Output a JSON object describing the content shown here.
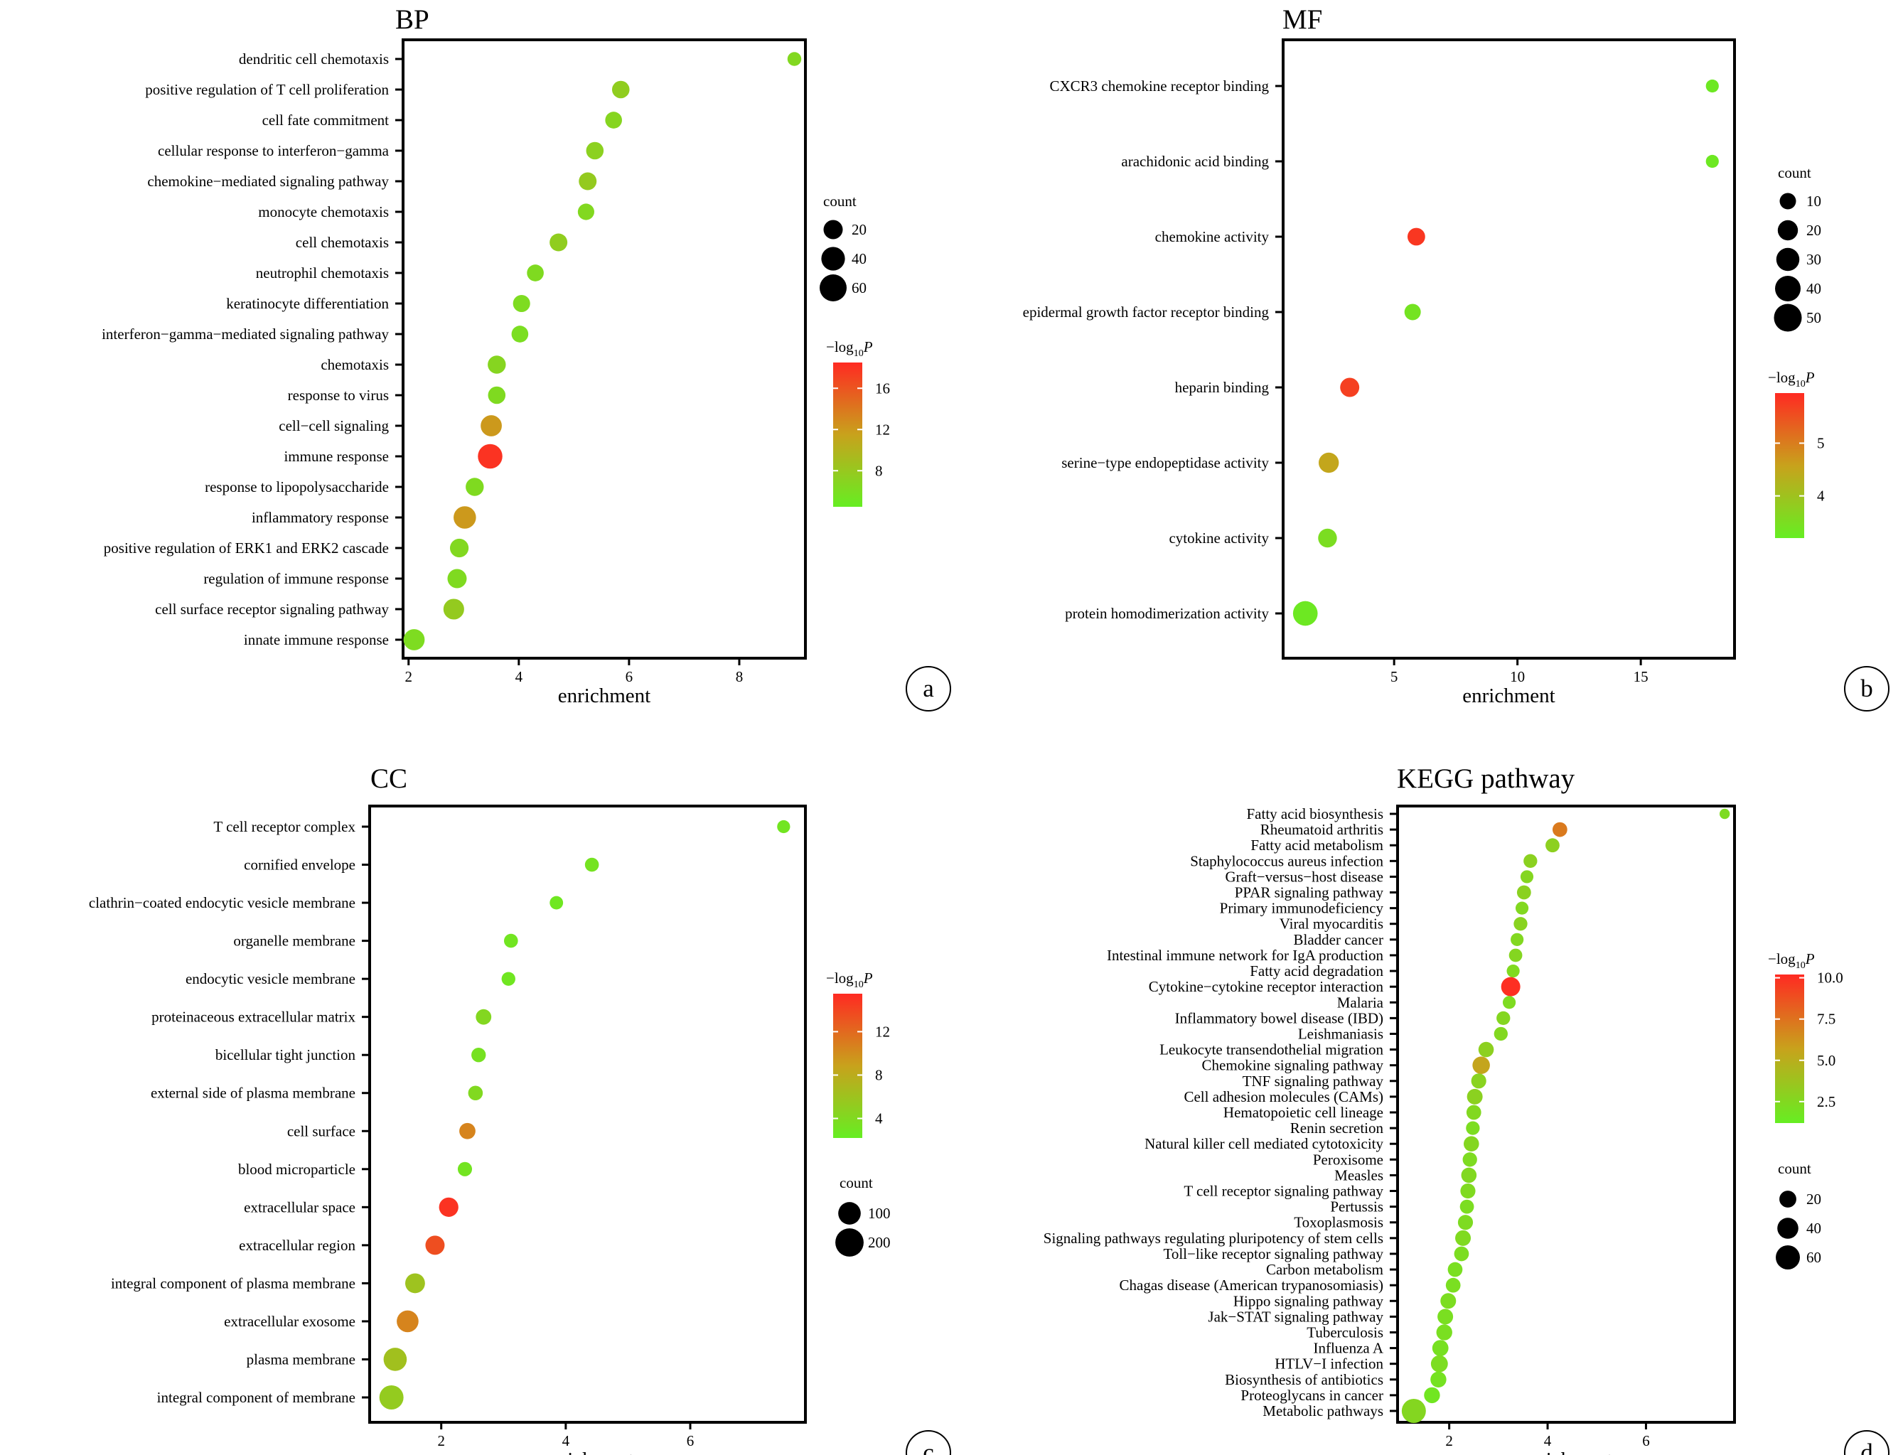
{
  "chart_data": [
    {
      "id": "a",
      "panel_letter": "a",
      "type": "scatter",
      "title": "BP",
      "xlabel": "enrichment",
      "xlim": [
        1.9,
        9.2
      ],
      "xticks": [
        2,
        4,
        6,
        8
      ],
      "size_legend": {
        "title": "count",
        "values": [
          20,
          40,
          60
        ]
      },
      "color_legend": {
        "title_prefix": "−log",
        "title_sub": "10",
        "title_var": "P",
        "ticks": [
          8,
          12,
          16
        ],
        "range": [
          4.5,
          18.5
        ]
      },
      "colors": {
        "low": "#66ee22",
        "mid": "#c8a21c",
        "high": "#ff2a22"
      },
      "points": [
        {
          "label": "dendritic cell chemotaxis",
          "x": 9.0,
          "count": 5,
          "logp": 6.5
        },
        {
          "label": "positive regulation of T cell proliferation",
          "x": 5.85,
          "count": 14,
          "logp": 7.5
        },
        {
          "label": "cell fate commitment",
          "x": 5.72,
          "count": 12,
          "logp": 6.8
        },
        {
          "label": "cellular response to interferon−gamma",
          "x": 5.38,
          "count": 14,
          "logp": 7.2
        },
        {
          "label": "chemokine−mediated signaling pathway",
          "x": 5.25,
          "count": 15,
          "logp": 7.8
        },
        {
          "label": "monocyte chemotaxis",
          "x": 5.22,
          "count": 11,
          "logp": 6.5
        },
        {
          "label": "cell chemotaxis",
          "x": 4.72,
          "count": 15,
          "logp": 7.5
        },
        {
          "label": "neutrophil chemotaxis",
          "x": 4.3,
          "count": 12,
          "logp": 6.3
        },
        {
          "label": "keratinocyte differentiation",
          "x": 4.05,
          "count": 13,
          "logp": 6.2
        },
        {
          "label": "interferon−gamma−mediated signaling pathway",
          "x": 4.02,
          "count": 12,
          "logp": 6.0
        },
        {
          "label": "chemotaxis",
          "x": 3.6,
          "count": 16,
          "logp": 6.8
        },
        {
          "label": "response to virus",
          "x": 3.6,
          "count": 14,
          "logp": 6.3
        },
        {
          "label": "cell−cell signaling",
          "x": 3.5,
          "count": 28,
          "logp": 12.0
        },
        {
          "label": "immune response",
          "x": 3.48,
          "count": 45,
          "logp": 18.0
        },
        {
          "label": "response to lipopolysaccharide",
          "x": 3.2,
          "count": 16,
          "logp": 6.3
        },
        {
          "label": "inflammatory response",
          "x": 3.02,
          "count": 34,
          "logp": 12.0
        },
        {
          "label": "positive regulation of ERK1 and ERK2 cascade",
          "x": 2.92,
          "count": 18,
          "logp": 6.5
        },
        {
          "label": "regulation of immune response",
          "x": 2.88,
          "count": 20,
          "logp": 6.3
        },
        {
          "label": "cell surface receptor signaling pathway",
          "x": 2.82,
          "count": 26,
          "logp": 7.8
        },
        {
          "label": "innate immune response",
          "x": 2.1,
          "count": 28,
          "logp": 6.2
        }
      ]
    },
    {
      "id": "b",
      "panel_letter": "b",
      "type": "scatter",
      "title": "MF",
      "xlabel": "enrichment",
      "xlim": [
        0.5,
        18.8
      ],
      "xticks": [
        5,
        10,
        15
      ],
      "size_legend": {
        "title": "count",
        "values": [
          10,
          20,
          30,
          40,
          50
        ]
      },
      "color_legend": {
        "title_prefix": "−log",
        "title_sub": "10",
        "title_var": "P",
        "ticks": [
          4,
          5
        ],
        "range": [
          3.2,
          5.95
        ]
      },
      "colors": {
        "low": "#66ee22",
        "mid": "#c8a21c",
        "high": "#ff2a22"
      },
      "points": [
        {
          "label": "CXCR3 chemokine receptor binding",
          "x": 17.9,
          "count": 4,
          "logp": 3.3
        },
        {
          "label": "arachidonic acid binding",
          "x": 17.9,
          "count": 4,
          "logp": 3.3
        },
        {
          "label": "chemokine activity",
          "x": 5.9,
          "count": 13,
          "logp": 5.8
        },
        {
          "label": "epidermal growth factor receptor binding",
          "x": 5.75,
          "count": 10,
          "logp": 3.4
        },
        {
          "label": "heparin binding",
          "x": 3.2,
          "count": 17,
          "logp": 5.7
        },
        {
          "label": "serine−type endopeptidase activity",
          "x": 2.35,
          "count": 20,
          "logp": 4.5
        },
        {
          "label": "cytokine activity",
          "x": 2.3,
          "count": 16,
          "logp": 3.5
        },
        {
          "label": "protein homodimerization activity",
          "x": 1.4,
          "count": 36,
          "logp": 3.3
        }
      ]
    },
    {
      "id": "c",
      "panel_letter": "c",
      "type": "scatter",
      "title": "CC",
      "xlabel": "enrichment",
      "xlim": [
        0.85,
        7.85
      ],
      "xticks": [
        2,
        4,
        6
      ],
      "size_legend": {
        "title": "count",
        "values": [
          100,
          200
        ]
      },
      "color_legend": {
        "title_prefix": "−log",
        "title_sub": "10",
        "title_var": "P",
        "ticks": [
          4,
          8,
          12
        ],
        "range": [
          2.2,
          15.5
        ]
      },
      "colors": {
        "low": "#66ee22",
        "mid": "#c8a21c",
        "high": "#ff2a22"
      },
      "points": [
        {
          "label": "T cell receptor complex",
          "x": 7.5,
          "count": 10,
          "logp": 3.0
        },
        {
          "label": "cornified envelope",
          "x": 4.42,
          "count": 15,
          "logp": 3.2
        },
        {
          "label": "clathrin−coated endocytic vesicle membrane",
          "x": 3.85,
          "count": 12,
          "logp": 2.8
        },
        {
          "label": "organelle membrane",
          "x": 3.12,
          "count": 15,
          "logp": 3.0
        },
        {
          "label": "endocytic vesicle membrane",
          "x": 3.08,
          "count": 14,
          "logp": 2.9
        },
        {
          "label": "proteinaceous extracellular matrix",
          "x": 2.68,
          "count": 25,
          "logp": 4.2
        },
        {
          "label": "bicellular tight junction",
          "x": 2.6,
          "count": 18,
          "logp": 3.3
        },
        {
          "label": "external side of plasma membrane",
          "x": 2.55,
          "count": 19,
          "logp": 4.0
        },
        {
          "label": "cell surface",
          "x": 2.42,
          "count": 30,
          "logp": 10.5
        },
        {
          "label": "blood microparticle",
          "x": 2.38,
          "count": 17,
          "logp": 3.1
        },
        {
          "label": "extracellular space",
          "x": 2.12,
          "count": 60,
          "logp": 15.0
        },
        {
          "label": "extracellular region",
          "x": 1.9,
          "count": 58,
          "logp": 13.5
        },
        {
          "label": "integral component of plasma membrane",
          "x": 1.58,
          "count": 65,
          "logp": 6.0
        },
        {
          "label": "extracellular exosome",
          "x": 1.46,
          "count": 90,
          "logp": 10.5
        },
        {
          "label": "plasma membrane",
          "x": 1.26,
          "count": 110,
          "logp": 6.2
        },
        {
          "label": "integral component of membrane",
          "x": 1.2,
          "count": 125,
          "logp": 5.3
        }
      ]
    },
    {
      "id": "d",
      "panel_letter": "d",
      "type": "scatter",
      "title": "KEGG pathway",
      "xlabel": "enrichment",
      "xlim": [
        0.95,
        7.8
      ],
      "xticks": [
        2,
        4,
        6
      ],
      "size_legend": {
        "title": "count",
        "values": [
          20,
          40,
          60
        ]
      },
      "color_legend": {
        "title_prefix": "−log",
        "title_sub": "10",
        "title_var": "P",
        "ticks": [
          2.5,
          5.0,
          7.5,
          10.0
        ],
        "tick_labels": [
          "2.5",
          "5.0",
          "7.5",
          "10.0"
        ],
        "range": [
          1.2,
          10.2
        ]
      },
      "colors": {
        "low": "#66ee22",
        "mid": "#c8a21c",
        "high": "#ff2a22"
      },
      "points": [
        {
          "label": "Fatty acid biosynthesis",
          "x": 7.6,
          "count": 2,
          "logp": 2.3
        },
        {
          "label": "Rheumatoid arthritis",
          "x": 4.25,
          "count": 12,
          "logp": 7.2
        },
        {
          "label": "Fatty acid metabolism",
          "x": 4.1,
          "count": 10,
          "logp": 3.0
        },
        {
          "label": "Staphylococcus aureus infection",
          "x": 3.65,
          "count": 9,
          "logp": 2.9
        },
        {
          "label": "Graft−versus−host disease",
          "x": 3.58,
          "count": 7,
          "logp": 2.6
        },
        {
          "label": "PPAR signaling pathway",
          "x": 3.52,
          "count": 10,
          "logp": 2.9
        },
        {
          "label": "Primary immunodeficiency",
          "x": 3.48,
          "count": 7,
          "logp": 2.5
        },
        {
          "label": "Viral myocarditis",
          "x": 3.45,
          "count": 9,
          "logp": 2.8
        },
        {
          "label": "Bladder cancer",
          "x": 3.38,
          "count": 7,
          "logp": 2.5
        },
        {
          "label": "Intestinal immune network for IgA production",
          "x": 3.35,
          "count": 8,
          "logp": 2.6
        },
        {
          "label": "Fatty acid degradation",
          "x": 3.3,
          "count": 7,
          "logp": 2.4
        },
        {
          "label": "Cytokine−cytokine receptor interaction",
          "x": 3.25,
          "count": 30,
          "logp": 10.0
        },
        {
          "label": "Malaria",
          "x": 3.22,
          "count": 7,
          "logp": 2.3
        },
        {
          "label": "Inflammatory bowel disease (IBD)",
          "x": 3.1,
          "count": 9,
          "logp": 2.6
        },
        {
          "label": "Leishmaniasis",
          "x": 3.05,
          "count": 9,
          "logp": 2.5
        },
        {
          "label": "Leukocyte transendothelial migration",
          "x": 2.75,
          "count": 14,
          "logp": 3.0
        },
        {
          "label": "Chemokine signaling pathway",
          "x": 2.65,
          "count": 22,
          "logp": 5.5
        },
        {
          "label": "TNF signaling pathway",
          "x": 2.6,
          "count": 13,
          "logp": 2.8
        },
        {
          "label": "Cell adhesion molecules (CAMs)",
          "x": 2.52,
          "count": 15,
          "logp": 2.9
        },
        {
          "label": "Hematopoietic cell lineage",
          "x": 2.5,
          "count": 12,
          "logp": 2.5
        },
        {
          "label": "Renin secretion",
          "x": 2.48,
          "count": 9,
          "logp": 2.2
        },
        {
          "label": "Natural killer cell mediated cytotoxicity",
          "x": 2.45,
          "count": 14,
          "logp": 2.6
        },
        {
          "label": "Peroxisome",
          "x": 2.42,
          "count": 11,
          "logp": 2.3
        },
        {
          "label": "Measles",
          "x": 2.4,
          "count": 14,
          "logp": 2.5
        },
        {
          "label": "T cell receptor signaling pathway",
          "x": 2.38,
          "count": 13,
          "logp": 2.4
        },
        {
          "label": "Pertussis",
          "x": 2.36,
          "count": 10,
          "logp": 2.2
        },
        {
          "label": "Toxoplasmosis",
          "x": 2.33,
          "count": 13,
          "logp": 2.3
        },
        {
          "label": "Signaling pathways regulating pluripotency of stem cells",
          "x": 2.28,
          "count": 15,
          "logp": 2.4
        },
        {
          "label": "Toll−like receptor signaling pathway",
          "x": 2.25,
          "count": 12,
          "logp": 2.2
        },
        {
          "label": "Carbon metabolism",
          "x": 2.12,
          "count": 12,
          "logp": 2.1
        },
        {
          "label": "Chagas disease (American trypanosomiasis)",
          "x": 2.08,
          "count": 12,
          "logp": 2.1
        },
        {
          "label": "Hippo signaling pathway",
          "x": 1.98,
          "count": 15,
          "logp": 2.2
        },
        {
          "label": "Jak−STAT signaling pathway",
          "x": 1.92,
          "count": 15,
          "logp": 2.1
        },
        {
          "label": "Tuberculosis",
          "x": 1.9,
          "count": 16,
          "logp": 2.1
        },
        {
          "label": "Influenza A",
          "x": 1.82,
          "count": 17,
          "logp": 2.0
        },
        {
          "label": "HTLV−I infection",
          "x": 1.8,
          "count": 20,
          "logp": 2.2
        },
        {
          "label": "Biosynthesis of antibiotics",
          "x": 1.78,
          "count": 16,
          "logp": 1.9
        },
        {
          "label": "Proteoglycans in cancer",
          "x": 1.65,
          "count": 16,
          "logp": 1.7
        },
        {
          "label": "Metabolic pathways",
          "x": 1.28,
          "count": 60,
          "logp": 2.6
        }
      ]
    }
  ]
}
